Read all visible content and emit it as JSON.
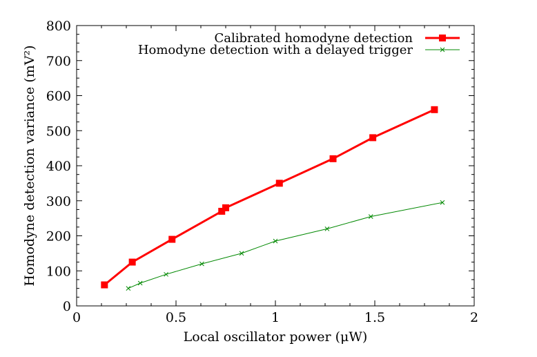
{
  "chart_data": {
    "type": "line",
    "title": "",
    "xlabel": "Local oscillator power (μW)",
    "ylabel": "Homodyne detection variance (mV²)",
    "xlim": [
      0,
      2
    ],
    "ylim": [
      0,
      800
    ],
    "xticks": [
      0,
      0.5,
      1,
      1.5,
      2
    ],
    "xtick_labels": [
      "0",
      "0.5",
      "1",
      "1.5",
      "2"
    ],
    "yticks": [
      0,
      100,
      200,
      300,
      400,
      500,
      600,
      700,
      800
    ],
    "ytick_labels": [
      "0",
      "100",
      "200",
      "300",
      "400",
      "500",
      "600",
      "700",
      "800"
    ],
    "grid": false,
    "legend_position": "top-right",
    "series": [
      {
        "name": "Calibrated homodyne detection",
        "color": "#ff0000",
        "marker": "square",
        "x": [
          0.14,
          0.28,
          0.48,
          0.73,
          0.75,
          1.02,
          1.29,
          1.49,
          1.8
        ],
        "y": [
          60,
          125,
          190,
          270,
          280,
          350,
          420,
          480,
          560
        ]
      },
      {
        "name": "Homodyne detection with a delayed trigger",
        "color": "#008800",
        "marker": "cross",
        "x": [
          0.26,
          0.32,
          0.45,
          0.63,
          0.83,
          1.0,
          1.26,
          1.48,
          1.84
        ],
        "y": [
          50,
          65,
          90,
          120,
          150,
          185,
          220,
          255,
          295
        ]
      }
    ]
  }
}
